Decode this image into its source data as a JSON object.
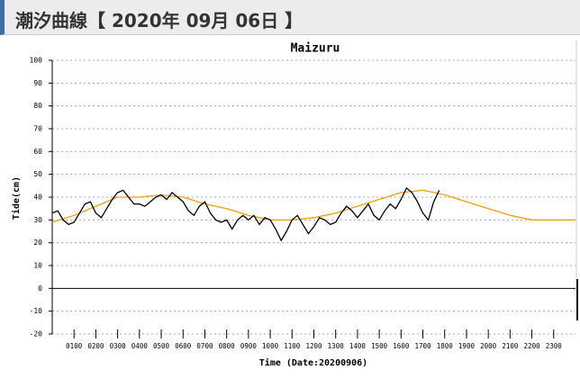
{
  "header": {
    "title": "潮汐曲線【 2020年 09月 06日 】"
  },
  "chart_data": {
    "type": "line",
    "title": "Maizuru",
    "x_label": "Time (Date:20200906)",
    "y_label": "Tide(cm)",
    "xlim": [
      0,
      24
    ],
    "ylim": [
      -20,
      100
    ],
    "yticks": [
      -20,
      -10,
      0,
      10,
      20,
      30,
      40,
      50,
      60,
      70,
      80,
      90,
      100
    ],
    "xticks": [
      {
        "value": 1,
        "label": "0100"
      },
      {
        "value": 2,
        "label": "0200"
      },
      {
        "value": 3,
        "label": "0300"
      },
      {
        "value": 4,
        "label": "0400"
      },
      {
        "value": 5,
        "label": "0500"
      },
      {
        "value": 6,
        "label": "0600"
      },
      {
        "value": 7,
        "label": "0700"
      },
      {
        "value": 8,
        "label": "0800"
      },
      {
        "value": 9,
        "label": "0900"
      },
      {
        "value": 10,
        "label": "1000"
      },
      {
        "value": 11,
        "label": "1100"
      },
      {
        "value": 12,
        "label": "1200"
      },
      {
        "value": 13,
        "label": "1300"
      },
      {
        "value": 14,
        "label": "1400"
      },
      {
        "value": 15,
        "label": "1500"
      },
      {
        "value": 16,
        "label": "1600"
      },
      {
        "value": 17,
        "label": "1700"
      },
      {
        "value": 18,
        "label": "1800"
      },
      {
        "value": 19,
        "label": "1900"
      },
      {
        "value": 20,
        "label": "2000"
      },
      {
        "value": 21,
        "label": "2100"
      },
      {
        "value": 22,
        "label": "2200"
      },
      {
        "value": 23,
        "label": "2300"
      }
    ],
    "grid": true,
    "series": [
      {
        "color": "#f0a000",
        "x": [
          0,
          1,
          2,
          3,
          4,
          5,
          6,
          7,
          8,
          9,
          10,
          11,
          12,
          13,
          14,
          15,
          16,
          17,
          17.5,
          18,
          19,
          20,
          21,
          22,
          23,
          24
        ],
        "values": [
          29,
          32,
          36,
          40,
          40,
          41,
          40,
          37,
          35,
          32,
          30,
          30,
          31,
          33,
          36,
          39,
          42,
          43,
          42,
          41,
          38,
          35,
          32,
          30,
          30,
          30
        ]
      },
      {
        "color": "#000000",
        "x": [
          0,
          0.25,
          0.5,
          0.75,
          1,
          1.25,
          1.5,
          1.75,
          2,
          2.25,
          2.5,
          2.75,
          3,
          3.25,
          3.5,
          3.75,
          4,
          4.25,
          4.5,
          4.75,
          5,
          5.25,
          5.5,
          5.75,
          6,
          6.25,
          6.5,
          6.75,
          7,
          7.25,
          7.5,
          7.75,
          8,
          8.25,
          8.5,
          8.75,
          9,
          9.25,
          9.5,
          9.75,
          10,
          10.25,
          10.5,
          10.75,
          11,
          11.25,
          11.5,
          11.75,
          12,
          12.25,
          12.5,
          12.75,
          13,
          13.25,
          13.5,
          13.75,
          14,
          14.25,
          14.5,
          14.75,
          15,
          15.25,
          15.5,
          15.75,
          16,
          16.25,
          16.5,
          16.75,
          17,
          17.25,
          17.5,
          17.75
        ],
        "values": [
          33,
          34,
          30,
          28,
          29,
          33,
          37,
          38,
          33,
          31,
          35,
          39,
          42,
          43,
          40,
          37,
          37,
          36,
          38,
          40,
          41,
          39,
          42,
          40,
          38,
          34,
          32,
          36,
          38,
          33,
          30,
          29,
          30,
          26,
          30,
          32,
          30,
          32,
          28,
          31,
          30,
          26,
          21,
          25,
          30,
          32,
          28,
          24,
          27,
          31,
          30,
          28,
          29,
          33,
          36,
          34,
          31,
          34,
          37,
          32,
          30,
          34,
          37,
          35,
          39,
          44,
          42,
          38,
          33,
          30,
          38,
          43
        ]
      }
    ]
  }
}
